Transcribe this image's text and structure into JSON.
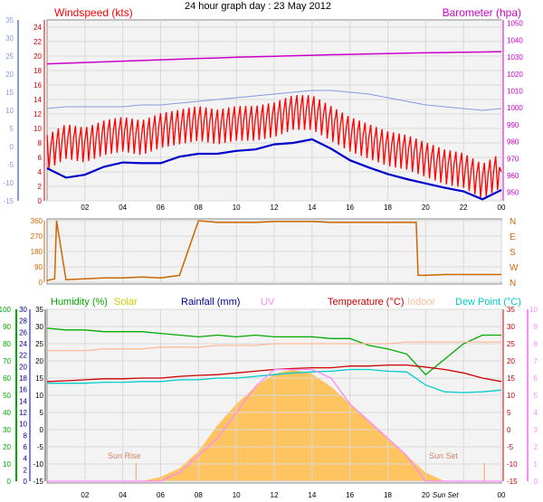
{
  "title": "24 hour graph day : 23 May 2012",
  "x_ticks": [
    "02",
    "04",
    "06",
    "08",
    "10",
    "12",
    "14",
    "16",
    "18",
    "20",
    "22",
    "00"
  ],
  "colors": {
    "windspeed": "#ff0000",
    "windavg": "#0000cc",
    "outer_left": "#8899dd",
    "barometer": "#cc00cc",
    "winddir": "#cc6600",
    "humidity": "#00aa00",
    "solar": "#cccc00",
    "rainfall": "#000099",
    "uv": "#ff88ff",
    "temperature": "#cc0000",
    "indoor": "#ffbb99",
    "dewpoint": "#00cccc",
    "sun_fill": "#ffbb44"
  },
  "chart_data": [
    {
      "type": "line",
      "name": "wind-barometer",
      "labels": {
        "windspeed": "Windspeed (kts)",
        "barometer": "Barometer (hpa)"
      },
      "yticks_wind": [
        "0",
        "2",
        "4",
        "6",
        "8",
        "10",
        "12",
        "14",
        "16",
        "18",
        "20",
        "22",
        "24"
      ],
      "yticks_outer": [
        "-15",
        "-10",
        "-5",
        "0",
        "5",
        "10",
        "15",
        "20",
        "25",
        "30",
        "35"
      ],
      "yticks_baro": [
        "950",
        "960",
        "970",
        "980",
        "990",
        "1000",
        "1010",
        "1020",
        "1030",
        "1040",
        "1050"
      ],
      "ylim_wind": [
        0,
        25
      ],
      "ylim_baro": [
        945,
        1052
      ],
      "ylim_outer": [
        -15,
        35
      ],
      "x": [
        0,
        1,
        2,
        3,
        4,
        5,
        6,
        7,
        8,
        9,
        10,
        11,
        12,
        13,
        14,
        15,
        16,
        17,
        18,
        19,
        20,
        21,
        22,
        23,
        24
      ],
      "series": [
        {
          "key": "windspeed",
          "values": [
            6.5,
            8,
            7.5,
            8.5,
            9,
            8.5,
            9.5,
            10,
            10.5,
            10,
            10.5,
            10.5,
            11,
            12,
            12,
            10.5,
            9,
            8,
            7,
            6.5,
            5.5,
            4.5,
            4,
            2.5,
            4
          ]
        },
        {
          "key": "windavg",
          "values": [
            4.5,
            3.2,
            3.6,
            4.7,
            5.3,
            5.2,
            5.2,
            6.1,
            6.5,
            6.5,
            6.9,
            7.1,
            7.8,
            8.0,
            8.5,
            7.2,
            5.6,
            4.6,
            3.7,
            3.0,
            2.4,
            1.8,
            1.3,
            0.2,
            1.5
          ]
        },
        {
          "key": "outer",
          "values": [
            10.5,
            11,
            11,
            11,
            11,
            11.5,
            11.5,
            12,
            12.5,
            13,
            13.5,
            14,
            14.5,
            15,
            15.5,
            15.5,
            15,
            14.5,
            13.5,
            12.5,
            11.5,
            11,
            10.5,
            10,
            10.5
          ]
        },
        {
          "key": "barometer",
          "values": [
            1026,
            1026.4,
            1026.8,
            1027.2,
            1027.6,
            1028,
            1028.4,
            1028.8,
            1029.2,
            1029.5,
            1029.9,
            1030.2,
            1030.5,
            1030.8,
            1031.1,
            1031.4,
            1031.6,
            1031.9,
            1032.1,
            1032.3,
            1032.5,
            1032.7,
            1032.9,
            1033,
            1033.2
          ]
        }
      ]
    },
    {
      "type": "line",
      "name": "wind-direction",
      "yticks": [
        "0",
        "90",
        "180",
        "270",
        "360"
      ],
      "compass": [
        "N",
        "W",
        "S",
        "E",
        "N"
      ],
      "ylim": [
        0,
        360
      ],
      "series": [
        {
          "key": "winddir",
          "x": [
            0,
            0.4,
            0.5,
            1,
            2,
            3,
            4,
            5,
            6,
            7,
            8,
            9,
            10,
            11,
            12,
            13,
            14,
            15,
            16,
            17,
            18,
            19,
            19.5,
            19.6,
            20,
            21,
            22,
            23,
            24
          ],
          "values": [
            10,
            20,
            360,
            15,
            20,
            25,
            25,
            30,
            25,
            40,
            360,
            350,
            350,
            350,
            355,
            355,
            355,
            350,
            350,
            350,
            350,
            350,
            350,
            40,
            40,
            45,
            45,
            45,
            45
          ]
        }
      ]
    },
    {
      "type": "line",
      "name": "humidity-temperature",
      "labels": {
        "humidity": "Humidity (%)",
        "solar": "Solar",
        "rainfall": "Rainfall (mm)",
        "uv": "UV",
        "temperature": "Temperature (°C)",
        "indoor": "Indoor",
        "dewpoint": "Dew Point (°C)",
        "sun_rise": "Sun Rise",
        "sun_set": "Sun Set",
        "sun_set_axis": "Sun Set"
      },
      "yticks_humidity": [
        "0",
        "10",
        "20",
        "30",
        "40",
        "50",
        "60",
        "70",
        "80",
        "90",
        "100"
      ],
      "yticks_rain": [
        "0",
        "2",
        "4",
        "6",
        "8",
        "10",
        "12",
        "14",
        "16",
        "18",
        "20",
        "22",
        "24",
        "26",
        "28",
        "30"
      ],
      "yticks_temp_left": [
        "-15",
        "-10",
        "-5",
        "0",
        "5",
        "10",
        "15",
        "20",
        "25",
        "30",
        "35"
      ],
      "yticks_temp_right": [
        "-15",
        "-10",
        "-5",
        "0",
        "5",
        "10",
        "15",
        "20",
        "25",
        "30",
        "35"
      ],
      "yticks_uv": [
        "0",
        "1",
        "2",
        "3",
        "4",
        "5",
        "6",
        "7",
        "8",
        "9",
        "10"
      ],
      "ylim_humidity": [
        0,
        100
      ],
      "ylim_temp": [
        -15,
        35
      ],
      "sunrise_hour": 4.7,
      "sunset_hour": 20.2,
      "x": [
        0,
        1,
        2,
        3,
        4,
        5,
        6,
        7,
        8,
        9,
        10,
        11,
        12,
        13,
        14,
        15,
        16,
        17,
        18,
        19,
        20,
        21,
        22,
        23,
        24
      ],
      "series": [
        {
          "key": "humidity",
          "values": [
            89,
            88,
            88,
            87,
            87,
            87,
            86,
            85,
            84,
            85,
            84,
            85,
            84,
            84,
            84,
            83,
            83,
            79,
            77,
            74,
            62,
            71,
            80,
            85,
            85
          ]
        },
        {
          "key": "temperature",
          "values": [
            14,
            14.2,
            14.5,
            14.8,
            14.8,
            15,
            15,
            15.5,
            15.8,
            16,
            16.5,
            17,
            17.5,
            17.8,
            18,
            18,
            18.5,
            18.5,
            18.8,
            18.8,
            18.2,
            17.5,
            16.5,
            15,
            14
          ]
        },
        {
          "key": "dewpoint",
          "values": [
            13.5,
            13.5,
            13.5,
            13.8,
            13.8,
            14,
            14,
            14.5,
            14.5,
            15,
            15,
            15.5,
            16,
            16.5,
            16.8,
            17,
            17.5,
            17.5,
            17,
            16.8,
            13,
            11,
            10.8,
            11,
            11.5
          ]
        },
        {
          "key": "indoor",
          "values": [
            23,
            23,
            23,
            23.5,
            23.5,
            23.5,
            24,
            24,
            24,
            24.5,
            24.5,
            24.5,
            25,
            25,
            25,
            25,
            25,
            25,
            25,
            25.5,
            25.5,
            25.5,
            25.5,
            25.5,
            25.5
          ]
        },
        {
          "key": "uv",
          "values": [
            0,
            0,
            0,
            0,
            0,
            0,
            0,
            0.5,
            1.5,
            2.5,
            4,
            5.5,
            6.5,
            6.5,
            6.5,
            6,
            4.5,
            3.5,
            2.5,
            1.5,
            0,
            0,
            0,
            0,
            0
          ]
        },
        {
          "key": "solar",
          "values": [
            0,
            0,
            0,
            0,
            0,
            0,
            0.5,
            1.5,
            3.5,
            6.5,
            9,
            11,
            12.5,
            13,
            12.5,
            11,
            9,
            7,
            5,
            3,
            1,
            0,
            0,
            0,
            0
          ]
        }
      ]
    }
  ]
}
